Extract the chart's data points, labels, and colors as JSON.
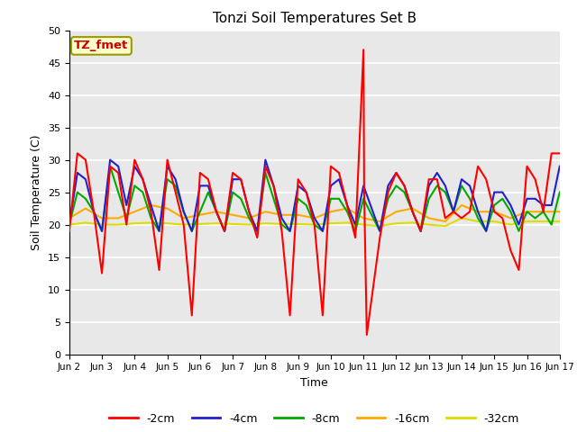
{
  "title": "Tonzi Soil Temperatures Set B",
  "xlabel": "Time",
  "ylabel": "Soil Temperature (C)",
  "annotation_text": "TZ_fmet",
  "annotation_bg": "#ffffcc",
  "annotation_border": "#999900",
  "annotation_color": "#cc0000",
  "xlim": [
    0,
    15
  ],
  "ylim": [
    0,
    50
  ],
  "yticks": [
    0,
    5,
    10,
    15,
    20,
    25,
    30,
    35,
    40,
    45,
    50
  ],
  "xtick_positions": [
    0,
    1,
    2,
    3,
    4,
    5,
    6,
    7,
    8,
    9,
    10,
    11,
    12,
    13,
    14,
    15
  ],
  "xtick_labels": [
    "Jun 2",
    "Jun 3",
    "Jun 4",
    "Jun 5",
    "Jun 6",
    "Jun 7",
    "Jun 8",
    "Jun 9",
    "Jun 10",
    "Jun 11",
    "Jun 12",
    "Jun 13",
    "Jun 14",
    "Jun 15",
    "Jun 16",
    "Jun 17"
  ],
  "plot_bg_color": "#e8e8e8",
  "fig_bg_color": "#ffffff",
  "grid_color": "#ffffff",
  "series_colors": [
    "#ff0000",
    "#2020cc",
    "#00aa00",
    "#ffaa00",
    "#dddd00"
  ],
  "series_labels": [
    "-2cm",
    "-4cm",
    "-8cm",
    "-16cm",
    "-32cm"
  ],
  "series_linewidth": 1.5,
  "x_2cm": [
    0,
    0.25,
    0.5,
    0.75,
    1.0,
    1.25,
    1.5,
    1.75,
    2.0,
    2.25,
    2.5,
    2.75,
    3.0,
    3.25,
    3.5,
    3.75,
    4.0,
    4.25,
    4.5,
    4.75,
    5.0,
    5.25,
    5.5,
    5.75,
    6.0,
    6.25,
    6.5,
    6.75,
    7.0,
    7.25,
    7.5,
    7.75,
    8.0,
    8.25,
    8.5,
    8.75,
    9.0,
    9.02,
    9.1,
    9.5,
    9.75,
    10.0,
    10.25,
    10.5,
    10.75,
    11.0,
    11.25,
    11.5,
    11.75,
    12.0,
    12.25,
    12.5,
    12.75,
    13.0,
    13.25,
    13.5,
    13.75,
    14.0,
    14.25,
    14.5,
    14.75,
    15.0
  ],
  "y_2cm": [
    19,
    31,
    30,
    22,
    12.5,
    29,
    28,
    20,
    30,
    27,
    22,
    13,
    30,
    25,
    20,
    6,
    28,
    27,
    22,
    19,
    28,
    27,
    22,
    18,
    29,
    26,
    19,
    6,
    27,
    25,
    20,
    6,
    29,
    28,
    23,
    18,
    47,
    25,
    3,
    18,
    25,
    28,
    26,
    22,
    19,
    27,
    27,
    21,
    22,
    21,
    22,
    29,
    27,
    22,
    21,
    16,
    13,
    29,
    27,
    22,
    31,
    31
  ],
  "x_4cm": [
    0,
    0.25,
    0.5,
    0.75,
    1.0,
    1.25,
    1.5,
    1.75,
    2.0,
    2.25,
    2.5,
    2.75,
    3.0,
    3.25,
    3.5,
    3.75,
    4.0,
    4.25,
    4.5,
    4.75,
    5.0,
    5.25,
    5.5,
    5.75,
    6.0,
    6.25,
    6.5,
    6.75,
    7.0,
    7.25,
    7.5,
    7.75,
    8.0,
    8.25,
    8.5,
    8.75,
    9.0,
    9.5,
    9.75,
    10.0,
    10.25,
    10.5,
    10.75,
    11.0,
    11.25,
    11.5,
    11.75,
    12.0,
    12.25,
    12.5,
    12.75,
    13.0,
    13.25,
    13.5,
    13.75,
    14.0,
    14.25,
    14.5,
    14.75,
    15.0
  ],
  "y_4cm": [
    20,
    28,
    27,
    22,
    19,
    30,
    29,
    23,
    29,
    27,
    23,
    19,
    29,
    27,
    22,
    19,
    26,
    26,
    22,
    19,
    27,
    27,
    22,
    19,
    30,
    26,
    21,
    19,
    26,
    25,
    21,
    19,
    26,
    27,
    23,
    20,
    26,
    19,
    26,
    28,
    26,
    22,
    19,
    26,
    28,
    26,
    22,
    27,
    26,
    22,
    19,
    25,
    25,
    23,
    20,
    24,
    24,
    23,
    23,
    29
  ],
  "x_8cm": [
    0,
    0.25,
    0.5,
    0.75,
    1.0,
    1.25,
    1.5,
    1.75,
    2.0,
    2.25,
    2.5,
    2.75,
    3.0,
    3.25,
    3.5,
    3.75,
    4.0,
    4.25,
    4.5,
    4.75,
    5.0,
    5.25,
    5.5,
    5.75,
    6.0,
    6.25,
    6.5,
    6.75,
    7.0,
    7.25,
    7.5,
    7.75,
    8.0,
    8.25,
    8.5,
    8.75,
    9.0,
    9.5,
    9.75,
    10.0,
    10.25,
    10.5,
    10.75,
    11.0,
    11.25,
    11.5,
    11.75,
    12.0,
    12.25,
    12.5,
    12.75,
    13.0,
    13.25,
    13.5,
    13.75,
    14.0,
    14.25,
    14.5,
    14.75,
    15.0
  ],
  "y_8cm": [
    20,
    25,
    24,
    22,
    19,
    29,
    25,
    21,
    26,
    25,
    21,
    19,
    27,
    26,
    22,
    19,
    22,
    25,
    22,
    19,
    25,
    24,
    21,
    19,
    28,
    24,
    20,
    19,
    24,
    23,
    20,
    19,
    24,
    24,
    22,
    19,
    24,
    19,
    24,
    26,
    25,
    22,
    19,
    24,
    26,
    25,
    22,
    26,
    24,
    21,
    19,
    23,
    24,
    22,
    19,
    22,
    21,
    22,
    20,
    25
  ],
  "x_16cm": [
    0,
    0.5,
    1.0,
    1.5,
    2.0,
    2.5,
    3.0,
    3.5,
    4.0,
    4.5,
    5.0,
    5.5,
    6.0,
    6.5,
    7.0,
    7.5,
    8.0,
    8.5,
    9.0,
    9.5,
    10.0,
    10.5,
    11.0,
    11.5,
    12.0,
    12.5,
    13.0,
    13.5,
    14.0,
    14.5,
    15.0
  ],
  "y_16cm": [
    21,
    22.5,
    21,
    21,
    22,
    23,
    22.5,
    21,
    21.5,
    22,
    21.5,
    21,
    22,
    21.5,
    21.5,
    21,
    22,
    22.5,
    21,
    20.5,
    22,
    22.5,
    21,
    20.5,
    23,
    22,
    22,
    21,
    22,
    22,
    22
  ],
  "x_32cm": [
    0,
    0.5,
    1.0,
    1.5,
    2.0,
    2.5,
    3.0,
    3.5,
    4.0,
    4.5,
    5.0,
    5.5,
    6.0,
    6.5,
    7.0,
    7.5,
    8.0,
    8.5,
    9.0,
    9.5,
    10.0,
    10.5,
    11.0,
    11.5,
    12.0,
    12.5,
    13.0,
    13.5,
    14.0,
    14.5,
    15.0
  ],
  "y_32cm": [
    20,
    20.3,
    20,
    20,
    20.2,
    20.3,
    20.2,
    20,
    20.1,
    20.2,
    20.1,
    20,
    20.2,
    20.1,
    20.1,
    20,
    20.2,
    20.3,
    20,
    19.8,
    20.2,
    20.3,
    20,
    19.8,
    21,
    20.5,
    20.5,
    20,
    20.5,
    20.5,
    20.5
  ]
}
